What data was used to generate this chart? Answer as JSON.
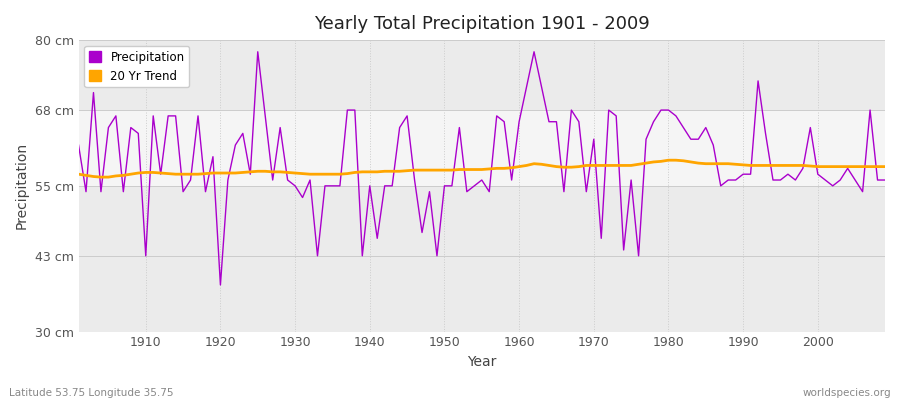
{
  "title": "Yearly Total Precipitation 1901 - 2009",
  "xlabel": "Year",
  "ylabel": "Precipitation",
  "subtitle_left": "Latitude 53.75 Longitude 35.75",
  "subtitle_right": "worldspecies.org",
  "years": [
    1901,
    1902,
    1903,
    1904,
    1905,
    1906,
    1907,
    1908,
    1909,
    1910,
    1911,
    1912,
    1913,
    1914,
    1915,
    1916,
    1917,
    1918,
    1919,
    1920,
    1921,
    1922,
    1923,
    1924,
    1925,
    1926,
    1927,
    1928,
    1929,
    1930,
    1931,
    1932,
    1933,
    1934,
    1935,
    1936,
    1937,
    1938,
    1939,
    1940,
    1941,
    1942,
    1943,
    1944,
    1945,
    1946,
    1947,
    1948,
    1949,
    1950,
    1951,
    1952,
    1953,
    1954,
    1955,
    1956,
    1957,
    1958,
    1959,
    1960,
    1961,
    1962,
    1963,
    1964,
    1965,
    1966,
    1967,
    1968,
    1969,
    1970,
    1971,
    1972,
    1973,
    1974,
    1975,
    1976,
    1977,
    1978,
    1979,
    1980,
    1981,
    1982,
    1983,
    1984,
    1985,
    1986,
    1987,
    1988,
    1989,
    1990,
    1991,
    1992,
    1993,
    1994,
    1995,
    1996,
    1997,
    1998,
    1999,
    2000,
    2001,
    2002,
    2003,
    2004,
    2005,
    2006,
    2007,
    2008,
    2009
  ],
  "precipitation": [
    62,
    54,
    71,
    54,
    65,
    67,
    54,
    65,
    64,
    43,
    67,
    57,
    67,
    67,
    54,
    56,
    67,
    54,
    60,
    38,
    56,
    62,
    64,
    57,
    78,
    67,
    56,
    65,
    56,
    55,
    53,
    56,
    43,
    55,
    55,
    55,
    68,
    68,
    43,
    55,
    46,
    55,
    55,
    65,
    67,
    56,
    47,
    54,
    43,
    55,
    55,
    65,
    54,
    55,
    56,
    54,
    67,
    66,
    56,
    66,
    72,
    78,
    72,
    66,
    66,
    54,
    68,
    66,
    54,
    63,
    46,
    68,
    67,
    44,
    56,
    43,
    63,
    66,
    68,
    68,
    67,
    65,
    63,
    63,
    65,
    62,
    55,
    56,
    56,
    57,
    57,
    73,
    64,
    56,
    56,
    57,
    56,
    58,
    65,
    57,
    56,
    55,
    56,
    58,
    56,
    54,
    68,
    56,
    56
  ],
  "trend": [
    57.0,
    56.8,
    56.6,
    56.5,
    56.5,
    56.7,
    56.8,
    57.0,
    57.2,
    57.3,
    57.3,
    57.2,
    57.1,
    57.0,
    57.0,
    57.0,
    57.0,
    57.1,
    57.2,
    57.2,
    57.2,
    57.2,
    57.3,
    57.4,
    57.5,
    57.5,
    57.4,
    57.4,
    57.3,
    57.2,
    57.1,
    57.0,
    57.0,
    57.0,
    57.0,
    57.0,
    57.1,
    57.3,
    57.4,
    57.4,
    57.4,
    57.5,
    57.5,
    57.5,
    57.6,
    57.7,
    57.7,
    57.7,
    57.7,
    57.7,
    57.7,
    57.8,
    57.8,
    57.8,
    57.8,
    57.9,
    58.0,
    58.0,
    58.1,
    58.3,
    58.5,
    58.8,
    58.7,
    58.5,
    58.3,
    58.2,
    58.2,
    58.3,
    58.5,
    58.5,
    58.5,
    58.5,
    58.5,
    58.5,
    58.5,
    58.7,
    58.9,
    59.1,
    59.2,
    59.4,
    59.4,
    59.3,
    59.1,
    58.9,
    58.8,
    58.8,
    58.8,
    58.8,
    58.7,
    58.6,
    58.5,
    58.5,
    58.5,
    58.5,
    58.5,
    58.5,
    58.5,
    58.5,
    58.4,
    58.3,
    58.3,
    58.3,
    58.3,
    58.3,
    58.3,
    58.3,
    58.3,
    58.3,
    58.3
  ],
  "precip_color": "#AA00CC",
  "trend_color": "#FFA500",
  "bg_color": "#FFFFFF",
  "plot_bg_color": "#EBEBEB",
  "band_color": "#F5F5F5",
  "grid_color": "#CCCCCC",
  "ylim": [
    30,
    80
  ],
  "yticks": [
    30,
    43,
    55,
    68,
    80
  ],
  "ytick_labels": [
    "30 cm",
    "43 cm",
    "55 cm",
    "68 cm",
    "80 cm"
  ],
  "xlim": [
    1901,
    2009
  ],
  "xticks": [
    1910,
    1920,
    1930,
    1940,
    1950,
    1960,
    1970,
    1980,
    1990,
    2000
  ],
  "band_y_low": 55,
  "band_y_high": 68
}
